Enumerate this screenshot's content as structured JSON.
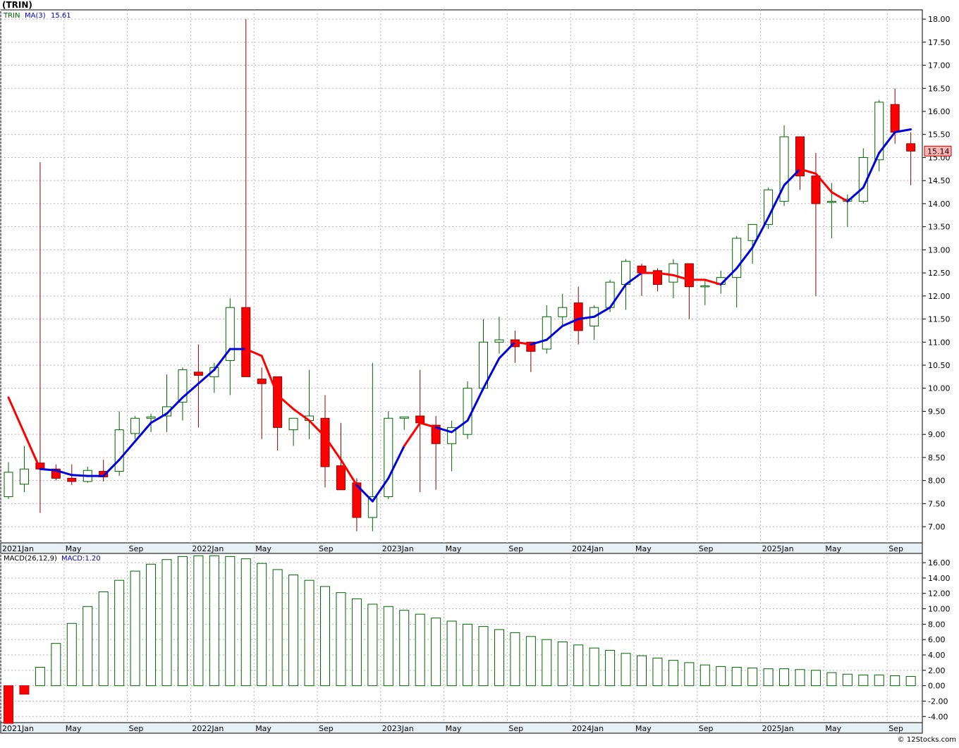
{
  "header": {
    "title": "(TRIN)"
  },
  "footer": {
    "credit": "© 12Stocks.com"
  },
  "colors": {
    "up_candle": "#006400",
    "down_candle": "#ff0000",
    "ma_up": "#0000dd",
    "ma_down": "#ff0000",
    "macd_bar": "#006400",
    "macd_neg": "#ff0000",
    "grid": "#b4b4b4",
    "price_badge_bg": "#ffb4b4",
    "axis_band": "#e6f0f5"
  },
  "chart_data": [
    {
      "type": "candlestick",
      "legend": {
        "symbol": "TRIN",
        "ma_label": "MA(3)",
        "ma_value": "15.61"
      },
      "ylim": [
        6.65,
        18.2
      ],
      "y_ticks": [
        "7.00",
        "7.50",
        "8.00",
        "8.50",
        "9.00",
        "9.50",
        "10.00",
        "10.50",
        "11.00",
        "11.50",
        "12.00",
        "12.50",
        "13.00",
        "13.50",
        "14.00",
        "14.50",
        "15.00",
        "15.50",
        "16.00",
        "16.50",
        "17.00",
        "17.50",
        "18.00"
      ],
      "last_price_label": "15.14",
      "last_price": 15.14,
      "x_labels": [
        "2021Jan",
        "May",
        "Sep",
        "2022Jan",
        "May",
        "Sep",
        "2023Jan",
        "May",
        "Sep",
        "2024Jan",
        "May",
        "Sep",
        "2025Jan",
        "May",
        "Sep"
      ],
      "x_label_months": [
        0,
        4,
        8,
        12,
        16,
        20,
        24,
        28,
        32,
        36,
        40,
        44,
        48,
        52,
        56
      ],
      "candles": [
        [
          7.65,
          8.4,
          7.6,
          8.18
        ],
        [
          7.92,
          8.75,
          7.75,
          8.25
        ],
        [
          8.38,
          14.9,
          7.3,
          8.25
        ],
        [
          8.25,
          8.35,
          8.0,
          8.05
        ],
        [
          8.05,
          8.35,
          7.9,
          7.98
        ],
        [
          7.98,
          8.3,
          7.95,
          8.22
        ],
        [
          8.2,
          8.45,
          7.98,
          8.08
        ],
        [
          8.2,
          9.5,
          8.1,
          9.1
        ],
        [
          9.02,
          9.4,
          8.9,
          9.35
        ],
        [
          9.35,
          9.45,
          9.05,
          9.38
        ],
        [
          9.4,
          10.3,
          9.05,
          9.6
        ],
        [
          9.7,
          10.45,
          9.3,
          10.4
        ],
        [
          10.35,
          10.95,
          9.15,
          10.28
        ],
        [
          10.25,
          10.55,
          9.9,
          10.45
        ],
        [
          10.6,
          11.95,
          9.85,
          11.75
        ],
        [
          11.75,
          18.0,
          10.25,
          10.25
        ],
        [
          10.2,
          10.45,
          8.9,
          10.1
        ],
        [
          10.25,
          10.25,
          8.65,
          9.15
        ],
        [
          9.1,
          9.35,
          8.75,
          9.35
        ],
        [
          9.3,
          10.4,
          8.9,
          9.4
        ],
        [
          9.35,
          9.85,
          7.85,
          8.3
        ],
        [
          8.32,
          9.25,
          7.8,
          7.8
        ],
        [
          7.95,
          8.05,
          6.9,
          7.2
        ],
        [
          7.2,
          10.55,
          6.9,
          7.65
        ],
        [
          7.65,
          9.5,
          7.6,
          9.35
        ],
        [
          9.35,
          9.35,
          9.1,
          9.38
        ],
        [
          9.4,
          10.4,
          7.75,
          9.25
        ],
        [
          9.2,
          9.4,
          7.8,
          8.8
        ],
        [
          8.8,
          9.3,
          8.2,
          9.15
        ],
        [
          9.0,
          10.15,
          8.9,
          10.0
        ],
        [
          10.0,
          11.5,
          9.95,
          11.0
        ],
        [
          11.0,
          11.55,
          10.75,
          11.05
        ],
        [
          11.05,
          11.25,
          10.55,
          10.9
        ],
        [
          11.0,
          11.0,
          10.35,
          10.8
        ],
        [
          10.85,
          11.8,
          10.75,
          11.55
        ],
        [
          11.55,
          12.05,
          11.35,
          11.75
        ],
        [
          11.85,
          12.2,
          10.95,
          11.25
        ],
        [
          11.35,
          11.8,
          11.05,
          11.75
        ],
        [
          11.75,
          12.35,
          11.65,
          12.3
        ],
        [
          12.25,
          12.8,
          11.7,
          12.75
        ],
        [
          12.65,
          12.7,
          12.0,
          12.5
        ],
        [
          12.55,
          12.6,
          12.1,
          12.25
        ],
        [
          12.3,
          12.8,
          11.95,
          12.7
        ],
        [
          12.7,
          12.7,
          11.5,
          12.2
        ],
        [
          12.2,
          12.35,
          11.8,
          12.22
        ],
        [
          12.25,
          12.55,
          12.05,
          12.4
        ],
        [
          12.4,
          13.3,
          11.75,
          13.25
        ],
        [
          13.2,
          13.55,
          12.7,
          13.55
        ],
        [
          13.55,
          14.35,
          13.45,
          14.3
        ],
        [
          14.05,
          15.7,
          13.95,
          15.45
        ],
        [
          15.45,
          15.45,
          14.3,
          14.6
        ],
        [
          14.6,
          15.1,
          12.0,
          14.0
        ],
        [
          14.05,
          14.45,
          13.25,
          14.05
        ],
        [
          14.05,
          14.2,
          13.5,
          14.1
        ],
        [
          14.05,
          15.2,
          14.0,
          15.0
        ],
        [
          14.95,
          16.25,
          14.7,
          16.2
        ],
        [
          16.15,
          16.5,
          15.3,
          15.55
        ],
        [
          15.3,
          15.55,
          14.4,
          15.14
        ]
      ],
      "ma3": [
        9.8,
        null,
        8.25,
        8.22,
        8.12,
        8.1,
        8.1,
        8.45,
        8.85,
        9.25,
        9.45,
        9.8,
        10.1,
        10.4,
        10.85,
        10.85,
        10.7,
        9.85,
        9.55,
        9.3,
        8.95,
        8.45,
        7.9,
        7.55,
        8.05,
        8.75,
        9.25,
        9.15,
        9.05,
        9.3,
        10.0,
        10.65,
        11.0,
        10.95,
        11.05,
        11.35,
        11.5,
        11.55,
        11.75,
        12.25,
        12.5,
        12.5,
        12.45,
        12.35,
        12.35,
        12.25,
        12.6,
        13.05,
        13.7,
        14.4,
        14.75,
        14.65,
        14.25,
        14.05,
        14.35,
        15.1,
        15.55,
        15.61
      ],
      "ma3_down_segments": [
        [
          0,
          1
        ],
        [
          15,
          22
        ],
        [
          25,
          27
        ],
        [
          32,
          33
        ],
        [
          40,
          45
        ],
        [
          50,
          53
        ]
      ]
    },
    {
      "type": "bar",
      "legend": {
        "label": "MACD(26,12,9)",
        "value_label": "MACD:1.20"
      },
      "ylim": [
        -4.8,
        17.2
      ],
      "y_ticks": [
        "16.00",
        "14.00",
        "12.00",
        "10.00",
        "8.00",
        "6.00",
        "4.00",
        "2.00",
        "0.00",
        "-2.00",
        "-4.00"
      ],
      "x_labels": [
        "2021Jan",
        "May",
        "Sep",
        "2022Jan",
        "May",
        "Sep",
        "2023Jan",
        "May",
        "Sep",
        "2024Jan",
        "May",
        "Sep",
        "2025Jan",
        "May",
        "Sep"
      ],
      "values": [
        -4.9,
        -1.1,
        2.4,
        5.5,
        8.1,
        10.3,
        12.2,
        13.7,
        14.9,
        15.8,
        16.4,
        16.8,
        16.9,
        16.9,
        16.8,
        16.5,
        15.9,
        15.1,
        14.4,
        13.7,
        12.9,
        12.1,
        11.3,
        10.6,
        10.3,
        9.8,
        9.3,
        8.8,
        8.4,
        8.0,
        7.7,
        7.3,
        6.9,
        6.4,
        6.0,
        5.7,
        5.3,
        4.9,
        4.6,
        4.2,
        3.9,
        3.6,
        3.3,
        3.0,
        2.7,
        2.5,
        2.4,
        2.3,
        2.2,
        2.2,
        2.1,
        2.0,
        1.7,
        1.5,
        1.4,
        1.4,
        1.3,
        1.2
      ]
    }
  ]
}
